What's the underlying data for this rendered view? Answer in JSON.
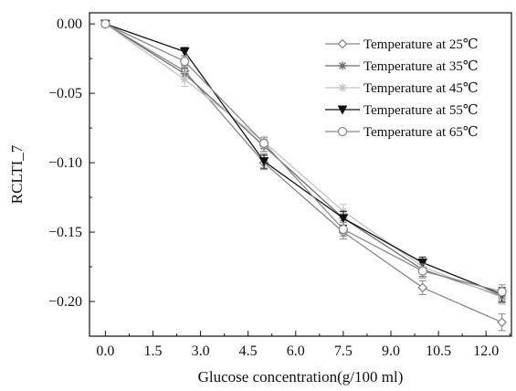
{
  "chart_data": {
    "type": "line",
    "xlabel": "Glucose concentration(g/100 ml)",
    "ylabel": "RCLTI_7",
    "xlim": [
      -0.5,
      12.8
    ],
    "ylim": [
      -0.225,
      0.008
    ],
    "xticks": [
      "0.0",
      "1.5",
      "3.0",
      "4.5",
      "6.0",
      "7.5",
      "9.0",
      "10.5",
      "12.0"
    ],
    "xtick_values": [
      0,
      1.5,
      3,
      4.5,
      6,
      7.5,
      9,
      10.5,
      12
    ],
    "yticks": [
      "0.00",
      "−0.05",
      "−0.10",
      "−0.15",
      "−0.20"
    ],
    "ytick_values": [
      0,
      -0.05,
      -0.1,
      -0.15,
      -0.2
    ],
    "grid": false,
    "legend_position": "top-right",
    "x": [
      0,
      2.5,
      5,
      7.5,
      10,
      12.5
    ],
    "series": [
      {
        "name": "Temperature at 25℃",
        "marker": "diamond-open",
        "color": "#888888",
        "values": [
          0,
          -0.034,
          -0.1,
          -0.15,
          -0.19,
          -0.215
        ],
        "errors": [
          0.002,
          0.004,
          0.005,
          0.005,
          0.005,
          0.006
        ]
      },
      {
        "name": "Temperature at 35℃",
        "marker": "star",
        "color": "#6e6e6e",
        "values": [
          0,
          -0.036,
          -0.088,
          -0.14,
          -0.177,
          -0.196
        ],
        "errors": [
          0.002,
          0.004,
          0.004,
          0.005,
          0.005,
          0.005
        ]
      },
      {
        "name": "Temperature at 45℃",
        "marker": "star",
        "color": "#c4c4c4",
        "values": [
          0,
          -0.04,
          -0.085,
          -0.135,
          -0.175,
          -0.197
        ],
        "errors": [
          0.002,
          0.005,
          0.004,
          0.005,
          0.005,
          0.005
        ]
      },
      {
        "name": "Temperature at 55℃",
        "marker": "triangle-down-filled",
        "color": "#111111",
        "values": [
          0,
          -0.02,
          -0.099,
          -0.14,
          -0.172,
          -0.195
        ],
        "errors": [
          0.002,
          0.003,
          0.005,
          0.005,
          0.004,
          0.005
        ]
      },
      {
        "name": "Temperature at 65℃",
        "marker": "circle-open",
        "color": "#8a8a8a",
        "values": [
          0,
          -0.027,
          -0.086,
          -0.148,
          -0.178,
          -0.193
        ],
        "errors": [
          0.002,
          0.004,
          0.004,
          0.005,
          0.005,
          0.005
        ]
      }
    ]
  }
}
